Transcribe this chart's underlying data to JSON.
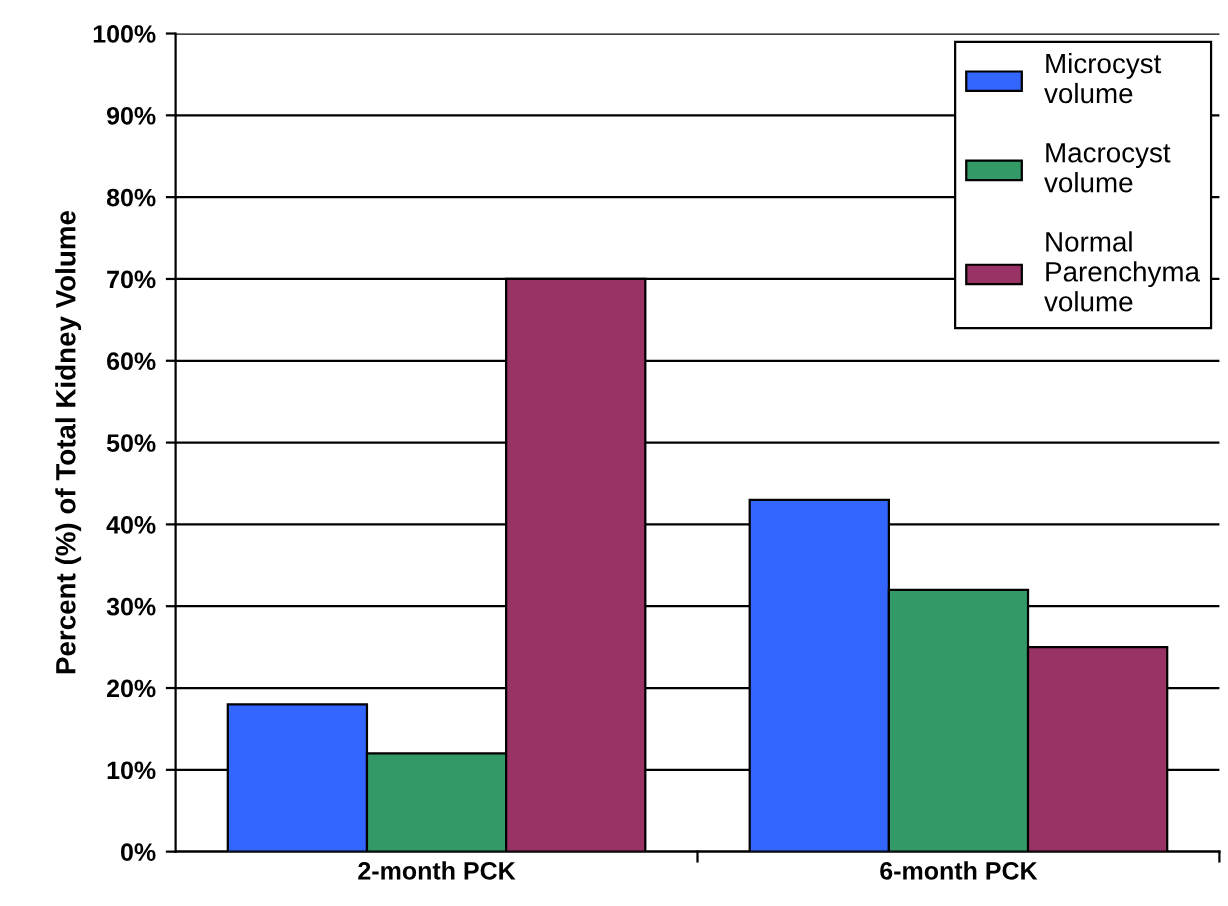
{
  "chart_data": {
    "type": "bar",
    "ylabel": "Percent (%) of Total Kidney Volume",
    "categories": [
      "2-month PCK",
      "6-month PCK"
    ],
    "series": [
      {
        "name": "Microcyst\nvolume",
        "color": "#3366ff",
        "values": [
          18,
          43
        ]
      },
      {
        "name": "Macrocyst\nvolume",
        "color": "#339966",
        "values": [
          12,
          32
        ]
      },
      {
        "name": "Normal\nParenchyma\nvolume",
        "color": "#993366",
        "values": [
          70,
          25
        ]
      }
    ],
    "ylim": [
      0,
      100
    ],
    "yticks": [
      {
        "value": 0,
        "label": "0%"
      },
      {
        "value": 10,
        "label": "10%"
      },
      {
        "value": 20,
        "label": "20%"
      },
      {
        "value": 30,
        "label": "30%"
      },
      {
        "value": 40,
        "label": "40%"
      },
      {
        "value": 50,
        "label": "50%"
      },
      {
        "value": 60,
        "label": "60%"
      },
      {
        "value": 70,
        "label": "70%"
      },
      {
        "value": 80,
        "label": "80%"
      },
      {
        "value": 90,
        "label": "90%"
      },
      {
        "value": 100,
        "label": "100%"
      }
    ],
    "grid": "y",
    "legend": "top right"
  }
}
